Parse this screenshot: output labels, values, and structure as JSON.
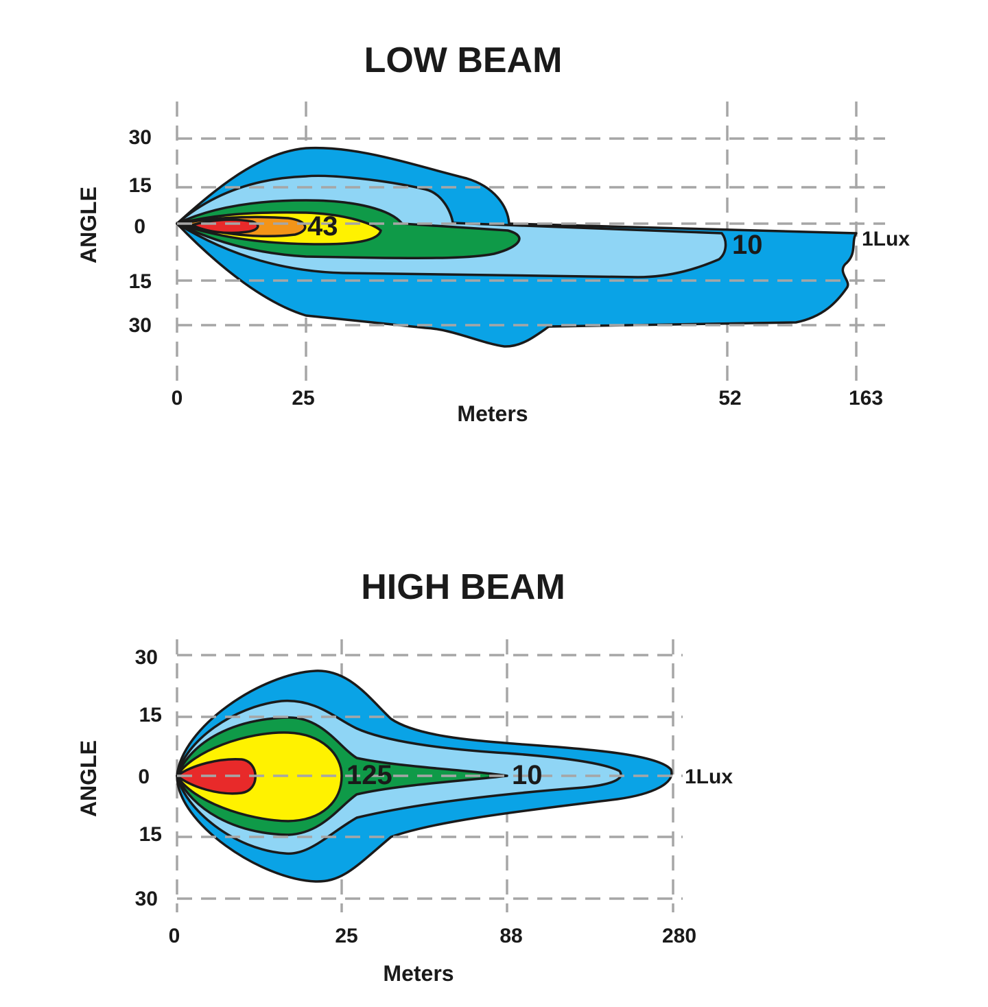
{
  "colors": {
    "grid": "#a6a6a6",
    "outline": "#1a1a1a",
    "zone_1lux": "#0aa3e6",
    "zone_light": "#8fd5f5",
    "zone_green": "#0f9a48",
    "zone_yellow": "#fff200",
    "zone_orange": "#f39418",
    "zone_red": "#e82a2a"
  },
  "low_beam": {
    "title": "LOW BEAM",
    "y_axis_label": "ANGLE",
    "x_axis_label": "Meters",
    "y_ticks": [
      "30",
      "15",
      "0",
      "15",
      "30"
    ],
    "x_ticks": [
      "0",
      "25",
      "52",
      "163"
    ],
    "iso_labels": [
      "43",
      "10"
    ],
    "lux_label": "1Lux"
  },
  "high_beam": {
    "title": "HIGH BEAM",
    "y_axis_label": "ANGLE",
    "x_axis_label": "Meters",
    "y_ticks": [
      "30",
      "15",
      "0",
      "15",
      "30"
    ],
    "x_ticks": [
      "0",
      "25",
      "88",
      "280"
    ],
    "iso_labels": [
      "125",
      "10"
    ],
    "lux_label": "1Lux"
  }
}
